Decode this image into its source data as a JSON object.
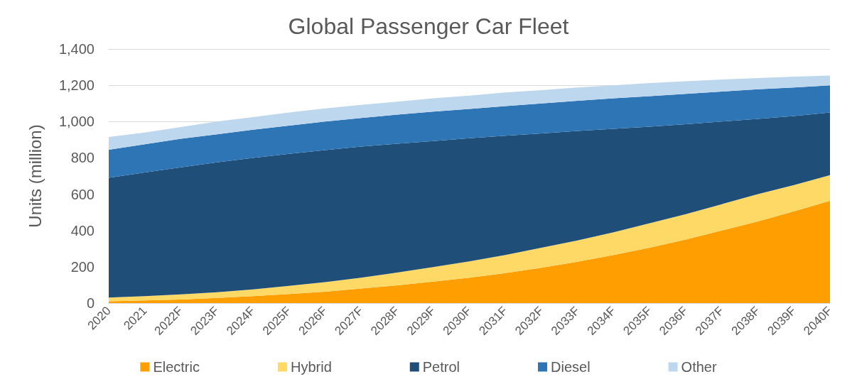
{
  "chart_data": {
    "type": "area",
    "title": "Global Passenger Car Fleet",
    "ylabel": "Units (million)",
    "stacked": true,
    "categories": [
      "2020",
      "2021",
      "2022F",
      "2023F",
      "2024F",
      "2025F",
      "2026F",
      "2027F",
      "2028F",
      "2029F",
      "2030F",
      "2031F",
      "2032F",
      "2033F",
      "2034F",
      "2035F",
      "2036F",
      "2037F",
      "2038F",
      "2039F",
      "2040F"
    ],
    "series": [
      {
        "name": "Electric",
        "color": "#ff9e00",
        "values": [
          10,
          15,
          20,
          28,
          38,
          50,
          63,
          80,
          98,
          118,
          140,
          165,
          195,
          228,
          265,
          305,
          350,
          400,
          450,
          505,
          563
        ]
      },
      {
        "name": "Hybrid",
        "color": "#ffd966",
        "values": [
          20,
          23,
          28,
          32,
          37,
          45,
          52,
          60,
          70,
          80,
          90,
          100,
          110,
          117,
          125,
          135,
          140,
          145,
          150,
          145,
          142
        ]
      },
      {
        "name": "Petrol",
        "color": "#1f4e79",
        "values": [
          660,
          682,
          700,
          715,
          725,
          727,
          728,
          722,
          710,
          695,
          678,
          657,
          630,
          603,
          570,
          532,
          495,
          455,
          415,
          380,
          345
        ]
      },
      {
        "name": "Diesel",
        "color": "#2e75b6",
        "values": [
          155,
          155,
          157,
          155,
          155,
          156,
          157,
          158,
          160,
          162,
          162,
          163,
          165,
          167,
          168,
          168,
          168,
          165,
          163,
          158,
          150
        ]
      },
      {
        "name": "Other",
        "color": "#bdd7ee",
        "values": [
          70,
          65,
          65,
          70,
          70,
          72,
          72,
          72,
          72,
          73,
          73,
          75,
          73,
          73,
          72,
          72,
          69,
          67,
          62,
          59,
          53
        ]
      }
    ],
    "ylim": [
      0,
      1400
    ],
    "yticks": [
      {
        "value": 0,
        "label": "0"
      },
      {
        "value": 200,
        "label": "200"
      },
      {
        "value": 400,
        "label": "400"
      },
      {
        "value": 600,
        "label": "600"
      },
      {
        "value": 800,
        "label": "800"
      },
      {
        "value": 1000,
        "label": "1,000"
      },
      {
        "value": 1200,
        "label": "1,200"
      },
      {
        "value": 1400,
        "label": "1,400"
      }
    ],
    "grid": "y",
    "legend": "bottom"
  }
}
